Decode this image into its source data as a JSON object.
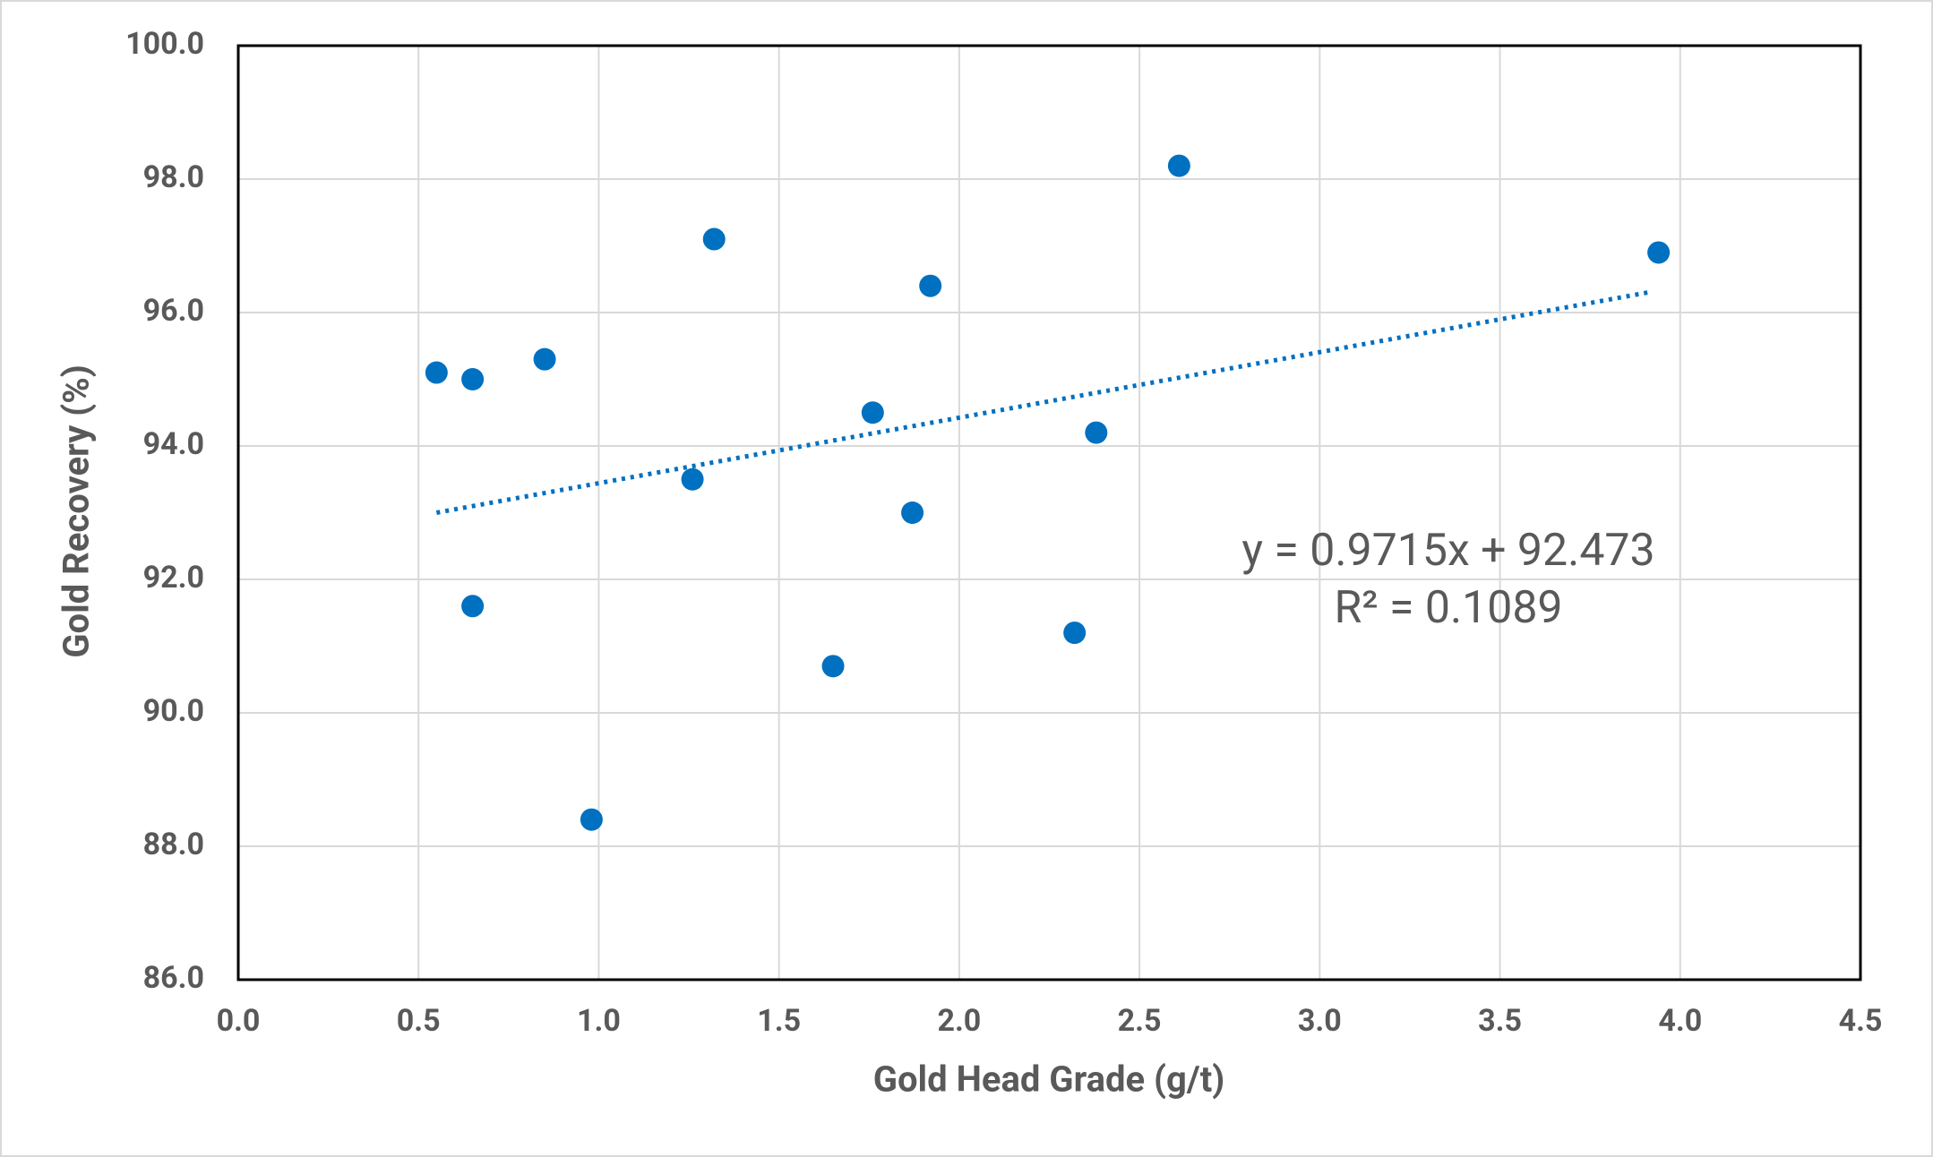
{
  "chart_data": {
    "type": "scatter",
    "x_label": "Gold Head Grade (g/t)",
    "y_label": "Gold Recovery (%)",
    "color": "#0070c0",
    "grid": true,
    "x": [
      0.55,
      0.65,
      0.85,
      0.65,
      0.98,
      1.26,
      1.32,
      1.65,
      1.76,
      1.87,
      1.92,
      2.32,
      2.38,
      2.61,
      3.94
    ],
    "values": [
      95.1,
      95.0,
      95.3,
      91.6,
      88.4,
      93.5,
      97.1,
      90.7,
      94.5,
      93.0,
      96.4,
      91.2,
      94.2,
      98.2,
      96.9
    ],
    "trendline": {
      "x": [
        0.55,
        3.91
      ],
      "values": [
        93.0,
        96.3
      ],
      "color": "#0070c0",
      "style": "dotted"
    },
    "annotations": [
      "y = 0.9715x + 92.473",
      "R² = 0.1089"
    ],
    "xlim": [
      0,
      4.5
    ],
    "ylim": [
      86,
      100
    ],
    "xticks": [
      {
        "value": 0,
        "label": "0.0"
      },
      0.5,
      {
        "value": 1,
        "label": "1.0"
      },
      1.5,
      {
        "value": 2,
        "label": "2.0"
      },
      2.5,
      {
        "value": 3,
        "label": "3.0"
      },
      3.5,
      {
        "value": 4,
        "label": "4.0"
      },
      4.5
    ],
    "yticks": [
      {
        "value": 86,
        "label": "86.0"
      },
      {
        "value": 88,
        "label": "88.0"
      },
      {
        "value": 90,
        "label": "90.0"
      },
      {
        "value": 92,
        "label": "92.0"
      },
      {
        "value": 94,
        "label": "94.0"
      },
      {
        "value": 96,
        "label": "96.0"
      },
      {
        "value": 98,
        "label": "98.0"
      },
      {
        "value": 100,
        "label": "100.0"
      }
    ]
  }
}
